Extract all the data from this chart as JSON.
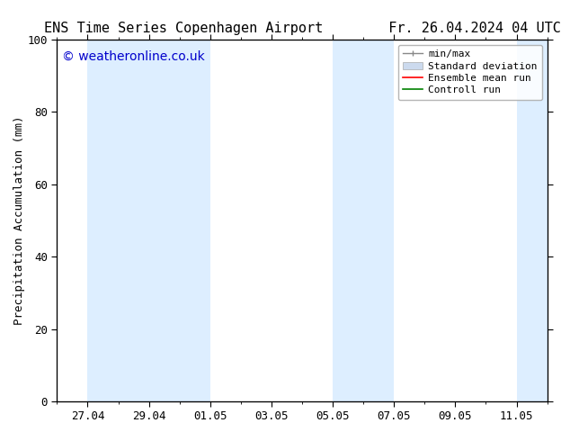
{
  "title_left": "ENS Time Series Copenhagen Airport",
  "title_right": "Fr. 26.04.2024 04 UTC",
  "ylabel": "Precipitation Accumulation (mm)",
  "watermark": "© weatheronline.co.uk",
  "watermark_color": "#0000cc",
  "ylim": [
    0,
    100
  ],
  "yticks": [
    0,
    20,
    40,
    60,
    80,
    100
  ],
  "background_color": "#ffffff",
  "plot_bg_color": "#ffffff",
  "shaded_bands": [
    {
      "xmin": "2024-04-27",
      "xmax": "2024-04-29",
      "color": "#ddeeff"
    },
    {
      "xmin": "2024-04-29",
      "xmax": "2024-05-01",
      "color": "#ddeeff"
    },
    {
      "xmin": "2024-05-05",
      "xmax": "2024-05-07",
      "color": "#ddeeff"
    },
    {
      "xmin": "2024-05-11",
      "xmax": "2024-05-12",
      "color": "#ddeeff"
    }
  ],
  "x_start": "2024-04-26",
  "x_end": "2024-05-12",
  "xtick_labels": [
    "27.04",
    "29.04",
    "01.05",
    "03.05",
    "05.05",
    "07.05",
    "09.05",
    "11.05"
  ],
  "xtick_positions_days": [
    1,
    3,
    5,
    7,
    9,
    11,
    13,
    15
  ],
  "legend_labels": [
    "min/max",
    "Standard deviation",
    "Ensemble mean run",
    "Controll run"
  ],
  "legend_colors_line": [
    "#999999",
    "#bbccdd",
    "#ff0000",
    "#008000"
  ],
  "font_size_title": 11,
  "font_size_axis": 9,
  "font_size_ticks": 9,
  "font_size_legend": 8,
  "font_size_watermark": 10
}
